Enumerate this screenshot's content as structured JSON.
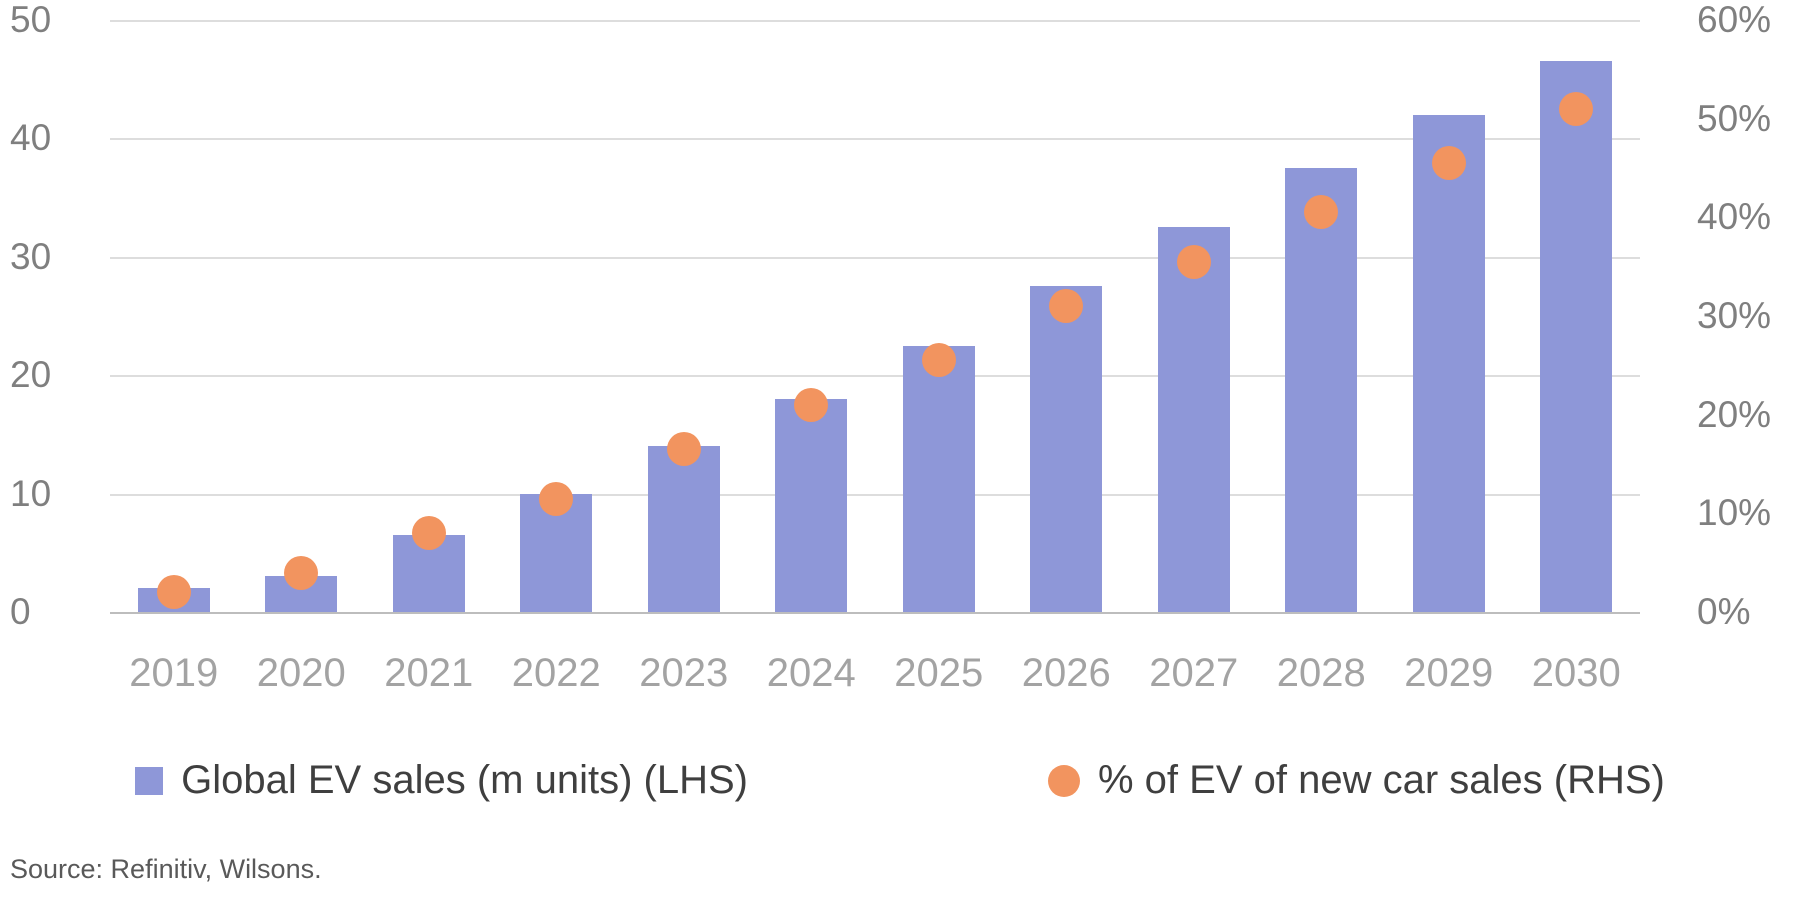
{
  "chart_data": {
    "type": "bar",
    "subtype": "bar-with-scatter-overlay",
    "categories": [
      "2019",
      "2020",
      "2021",
      "2022",
      "2023",
      "2024",
      "2025",
      "2026",
      "2027",
      "2028",
      "2029",
      "2030"
    ],
    "series": [
      {
        "name": "Global EV sales (m units) (LHS)",
        "type": "bar",
        "axis": "left",
        "color": "#8e97d8",
        "values": [
          2,
          3,
          6.5,
          10,
          14,
          18,
          22.5,
          27.5,
          32.5,
          37.5,
          42,
          46.5
        ]
      },
      {
        "name": "% of EV of new car sales (RHS)",
        "type": "scatter",
        "axis": "right",
        "color": "#f2945f",
        "values": [
          2,
          4,
          8,
          11.5,
          16.5,
          21,
          25.5,
          31,
          35.5,
          40.5,
          45.5,
          51
        ]
      }
    ],
    "left_axis": {
      "min": 0,
      "max": 50,
      "ticks": [
        50,
        40,
        30,
        20,
        10,
        0
      ],
      "tick_labels": [
        "50",
        "40",
        "30",
        "20",
        "10",
        "0"
      ]
    },
    "right_axis": {
      "min": 0,
      "max": 60,
      "ticks": [
        60,
        50,
        40,
        30,
        20,
        10,
        0
      ],
      "tick_labels": [
        "60%",
        "50%",
        "40%",
        "30%",
        "20%",
        "10%",
        "0%"
      ]
    },
    "grid": "horizontal",
    "legend_position": "bottom",
    "title": "",
    "xlabel": "",
    "ylabel_left": "",
    "ylabel_right": ""
  },
  "legend": {
    "items": [
      {
        "label": "Global EV sales (m units) (LHS)",
        "marker": "square",
        "color": "#8e97d8"
      },
      {
        "label": "% of EV of new car sales (RHS)",
        "marker": "circle",
        "color": "#f2945f"
      }
    ]
  },
  "source_note": "Source: Refinitiv, Wilsons."
}
